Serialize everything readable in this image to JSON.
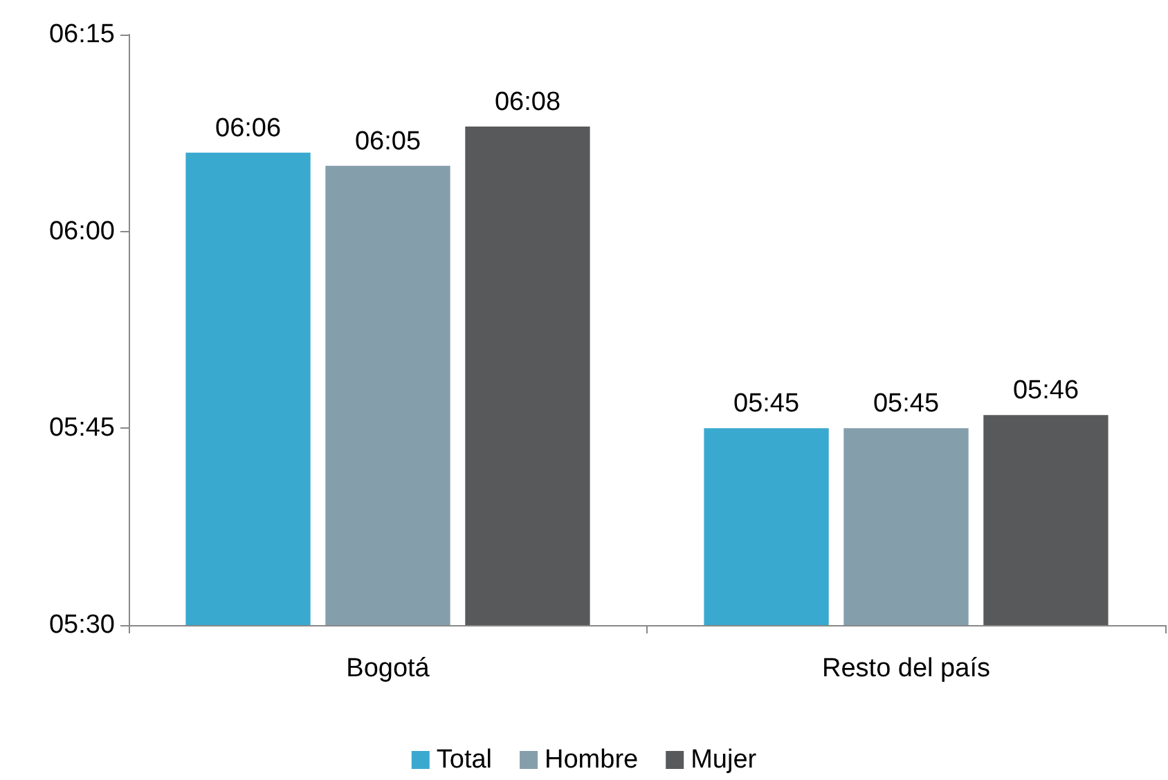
{
  "chart_data": {
    "type": "bar",
    "categories": [
      "Bogotá",
      "Resto del país"
    ],
    "series": [
      {
        "name": "Total",
        "color": "#3aa9cf",
        "values": [
          6.1,
          5.75
        ],
        "value_labels": [
          "06:06",
          "05:45"
        ]
      },
      {
        "name": "Hombre",
        "color": "#859eab",
        "values": [
          6.0833,
          5.75
        ],
        "value_labels": [
          "06:05",
          "05:45"
        ]
      },
      {
        "name": "Mujer",
        "color": "#58595b",
        "values": [
          6.1333,
          5.7667
        ],
        "value_labels": [
          "06:08",
          "05:46"
        ]
      }
    ],
    "ylim": [
      5.5,
      6.25
    ],
    "yticks": [
      {
        "value": 5.5,
        "label": "05:30"
      },
      {
        "value": 5.75,
        "label": "05:45"
      },
      {
        "value": 6,
        "label": "06:00"
      },
      {
        "value": 6.25,
        "label": "06:15"
      }
    ],
    "grid": false,
    "legend": "bottom"
  }
}
